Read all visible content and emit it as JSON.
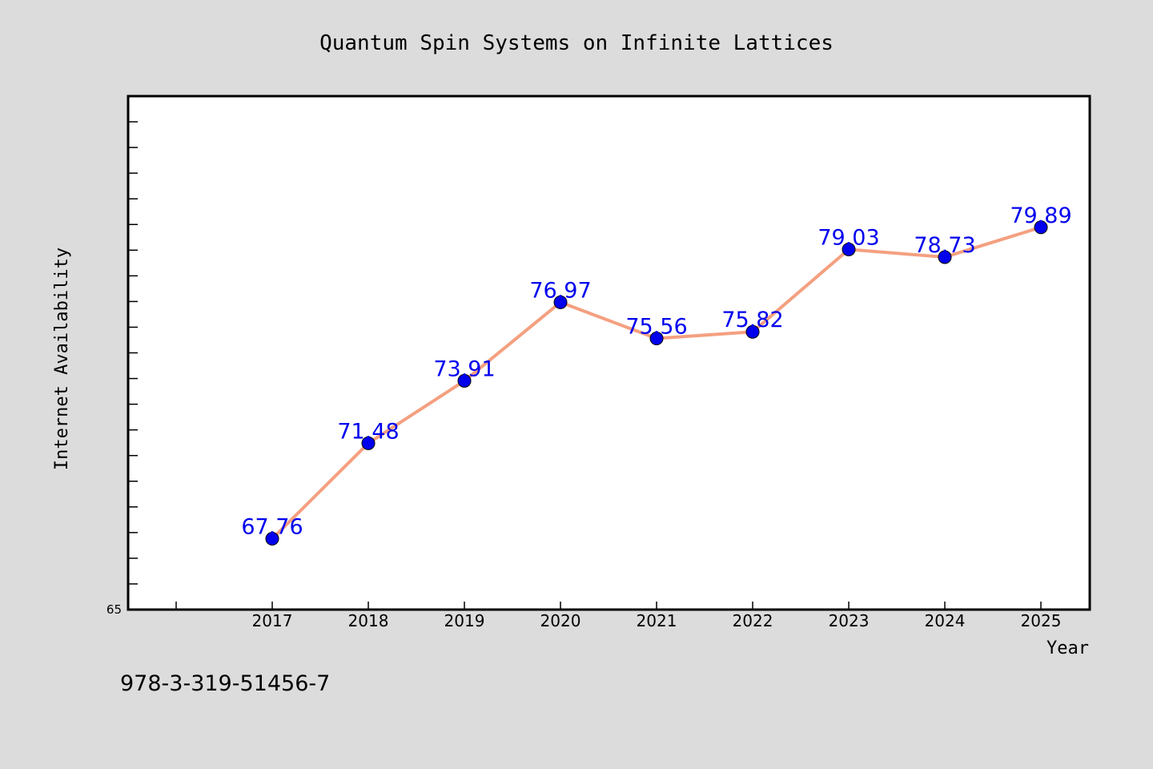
{
  "chart_data": {
    "type": "line",
    "title": "Quantum Spin Systems on Infinite Lattices",
    "xlabel": "Year",
    "ylabel": "Internet Availability",
    "x": [
      "2017",
      "2018",
      "2019",
      "2020",
      "2021",
      "2022",
      "2023",
      "2024",
      "2025"
    ],
    "series": [
      {
        "values": [
          67.76,
          71.48,
          73.91,
          76.97,
          75.56,
          75.82,
          79.03,
          78.73,
          79.89
        ],
        "data_labels": [
          "67.76",
          "71.48",
          "73.91",
          "76.97",
          "75.56",
          "75.82",
          "79.03",
          "78.73",
          "79.89"
        ],
        "line_color": "#f4a080",
        "marker_color": "#0000ee",
        "label_color": "#0000ee"
      }
    ],
    "ylim": [
      65,
      85
    ],
    "y_tick_labels": [
      "65"
    ],
    "grid": false,
    "legend": "none"
  },
  "footer_text": "978-3-319-51456-7",
  "colors": {
    "background": "#dcdcdc",
    "plot_background": "#ffffff",
    "axis": "#000000"
  }
}
